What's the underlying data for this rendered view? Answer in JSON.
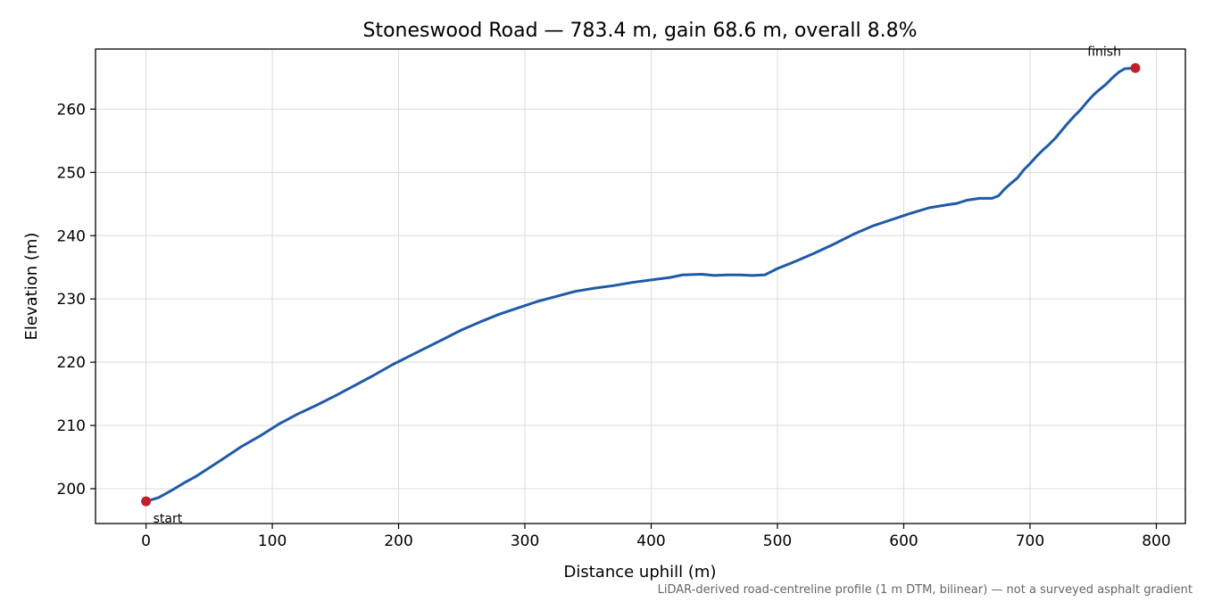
{
  "chart_data": {
    "type": "line",
    "title": "Stoneswood Road — 783.4 m, gain 68.6 m, overall 8.8%",
    "xlabel": "Distance uphill (m)",
    "ylabel": "Elevation (m)",
    "xlim": [
      -40,
      823
    ],
    "ylim": [
      194.5,
      269.5
    ],
    "xticks": [
      0,
      100,
      200,
      300,
      400,
      500,
      600,
      700,
      800
    ],
    "yticks": [
      200,
      210,
      220,
      230,
      240,
      250,
      260
    ],
    "grid": true,
    "line_color": "#1f5aa8",
    "marker_color": "#c0202a",
    "series": [
      {
        "x": [
          0,
          10,
          20,
          30,
          40,
          50,
          60,
          75,
          90,
          105,
          120,
          135,
          150,
          165,
          180,
          195,
          210,
          220,
          235,
          250,
          265,
          280,
          295,
          310,
          325,
          340,
          355,
          370,
          385,
          400,
          415,
          425,
          440,
          450,
          460,
          470,
          480,
          490,
          500,
          505,
          515,
          530,
          545,
          560,
          575,
          590,
          605,
          620,
          635,
          642,
          650,
          660,
          670,
          675,
          680,
          685,
          690,
          695,
          700,
          705,
          710,
          715,
          720,
          725,
          730,
          735,
          740,
          745,
          750,
          755,
          760,
          765,
          770,
          775,
          783.4
        ],
        "y": [
          198.0,
          198.6,
          199.7,
          200.9,
          202.0,
          203.3,
          204.6,
          206.6,
          208.3,
          210.2,
          211.8,
          213.2,
          214.7,
          216.3,
          217.9,
          219.6,
          221.1,
          222.1,
          223.6,
          225.1,
          226.4,
          227.6,
          228.6,
          229.6,
          230.4,
          231.2,
          231.7,
          232.1,
          232.6,
          233.0,
          233.4,
          233.8,
          233.9,
          233.7,
          233.8,
          233.8,
          233.7,
          233.8,
          234.8,
          235.2,
          236.0,
          237.3,
          238.7,
          240.2,
          241.5,
          242.5,
          243.5,
          244.4,
          244.9,
          245.1,
          245.6,
          245.9,
          245.9,
          246.3,
          247.4,
          248.3,
          249.1,
          250.4,
          251.4,
          252.5,
          253.5,
          254.4,
          255.4,
          256.6,
          257.8,
          258.9,
          259.9,
          261.1,
          262.2,
          263.1,
          263.9,
          264.9,
          265.8,
          266.4,
          266.5
        ]
      }
    ],
    "annotations": [
      {
        "text": "start",
        "x": 0,
        "y": 198.0,
        "placement": "below-right"
      },
      {
        "text": "finish",
        "x": 783.4,
        "y": 266.5,
        "placement": "above-left"
      }
    ],
    "footnote": "LiDAR-derived road-centreline profile (1 m DTM, bilinear) — not a surveyed asphalt gradient"
  }
}
